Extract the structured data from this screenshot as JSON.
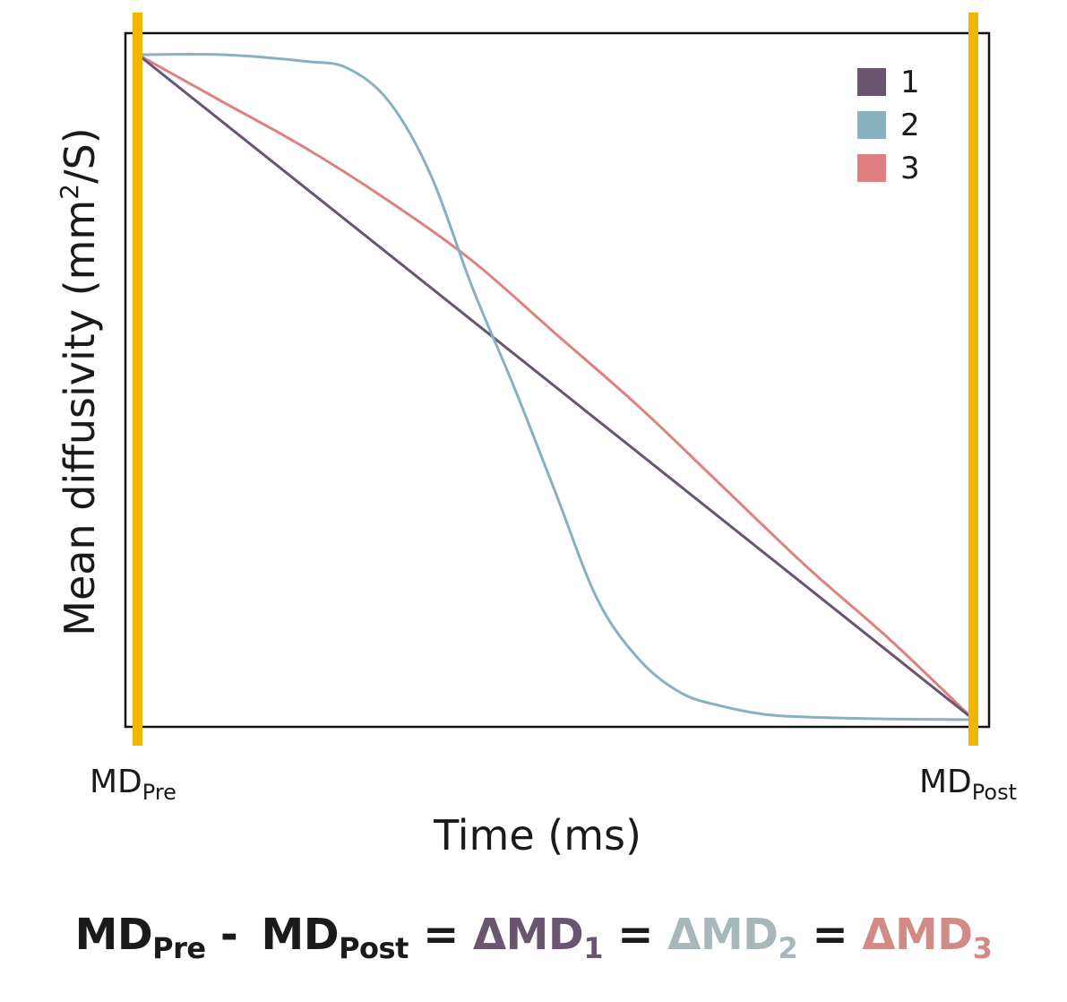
{
  "chart_data": {
    "type": "line",
    "xlabel": "Time (ms)",
    "ylabel_prefix": "Mean diffusivity (mm",
    "ylabel_sup": "2",
    "ylabel_suffix": "/S)",
    "x_start": {
      "main": "MD",
      "sub": "Pre"
    },
    "x_end": {
      "main": "MD",
      "sub": "Post"
    },
    "xlim": [
      0,
      1
    ],
    "ylim": [
      0,
      1
    ],
    "grid": false,
    "legend_position": "top-right",
    "marker_color": "#f2b600",
    "series": [
      {
        "name": "1",
        "color": "#6a5570",
        "x": [
          0,
          1
        ],
        "y": [
          1,
          0
        ]
      },
      {
        "name": "2",
        "color": "#87b1bf",
        "x": [
          0,
          0.1,
          0.2,
          0.25,
          0.3,
          0.35,
          0.4,
          0.45,
          0.5,
          0.55,
          0.6,
          0.65,
          0.7,
          0.75,
          0.8,
          0.9,
          1
        ],
        "y": [
          1,
          1,
          0.99,
          0.98,
          0.93,
          0.82,
          0.65,
          0.5,
          0.34,
          0.18,
          0.09,
          0.04,
          0.02,
          0.008,
          0.004,
          0.001,
          0
        ]
      },
      {
        "name": "3",
        "color": "#e07f80",
        "x": [
          0,
          0.1,
          0.2,
          0.3,
          0.4,
          0.5,
          0.6,
          0.7,
          0.8,
          0.9,
          1
        ],
        "y": [
          1,
          0.93,
          0.86,
          0.78,
          0.69,
          0.58,
          0.47,
          0.35,
          0.23,
          0.12,
          0
        ]
      }
    ]
  },
  "equation": {
    "term1_main": "MD",
    "term1_sub": "Pre",
    "minus": "-",
    "term2_main": "MD",
    "term2_sub": "Post",
    "eq": "=",
    "delta_main": "ΔMD",
    "d1_sub": "1",
    "d2_sub": "2",
    "d3_sub": "3",
    "color1": "#6a5570",
    "color2": "#a7b7ba",
    "color3": "#d18b87"
  }
}
